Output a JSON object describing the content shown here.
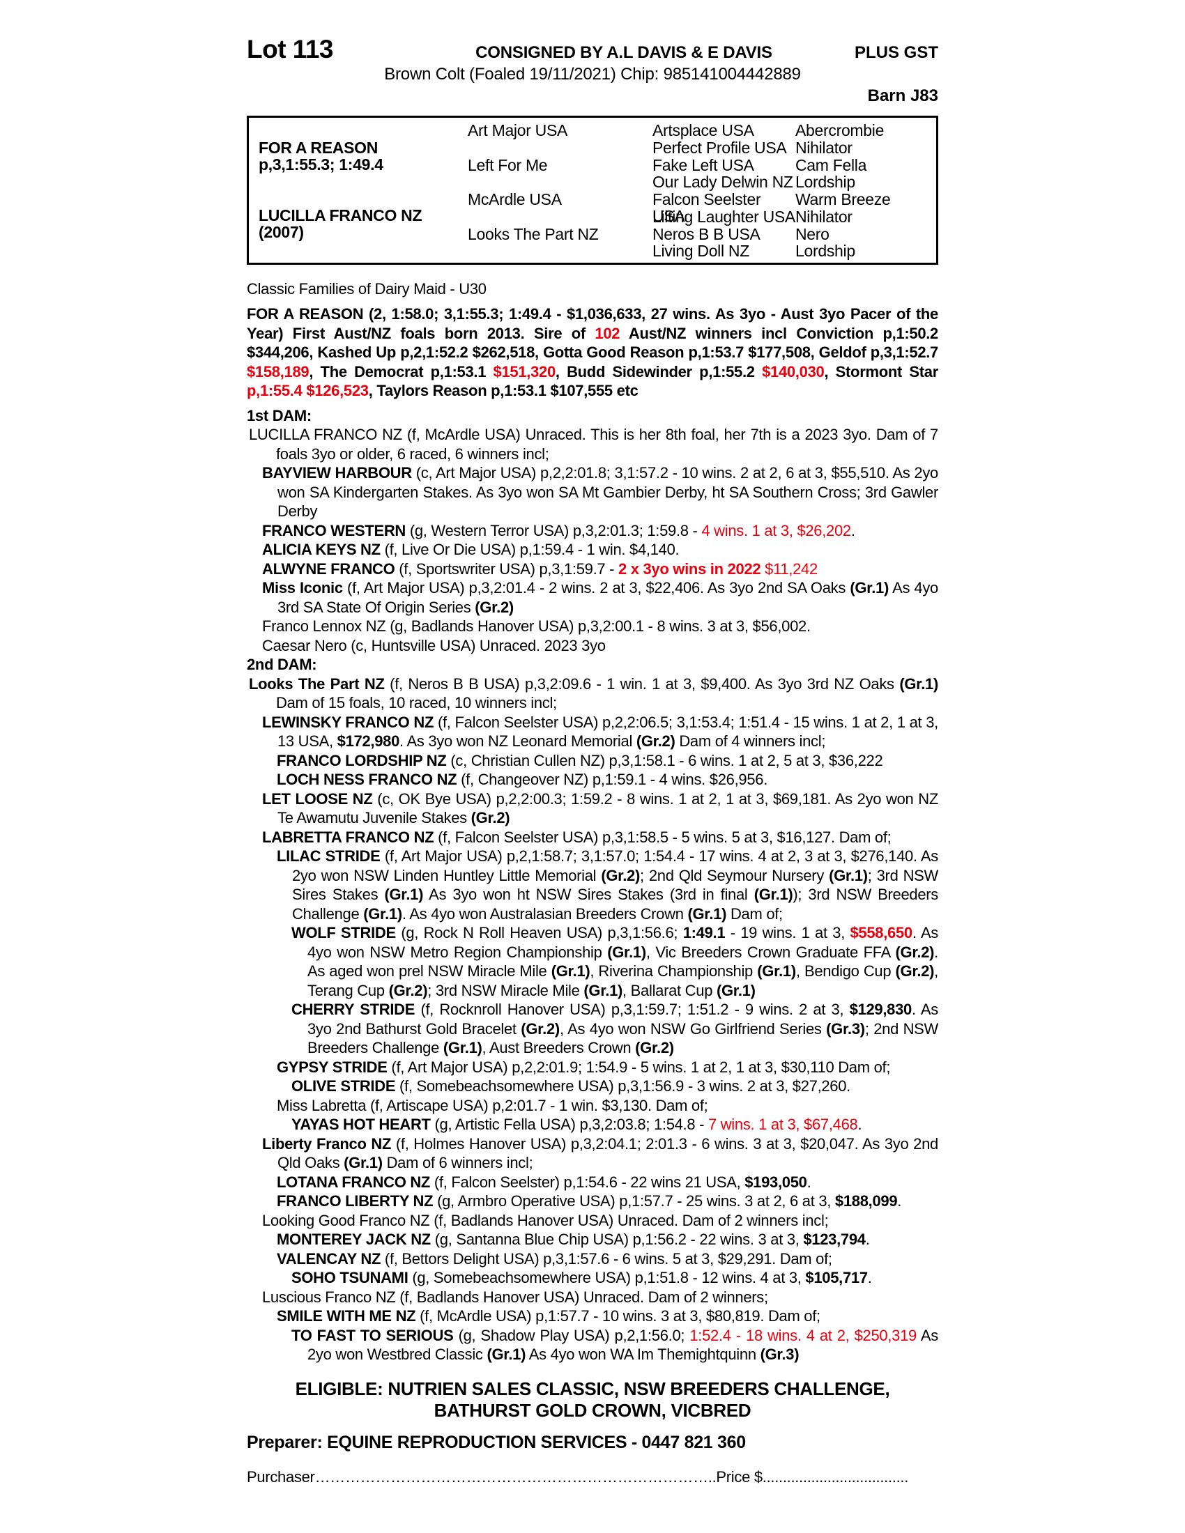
{
  "colors": {
    "accent_red": "#e8000d"
  },
  "header": {
    "lot": "Lot 113",
    "consigned": "CONSIGNED BY A.L DAVIS & E DAVIS",
    "plus_gst": "PLUS GST",
    "foaled_line": "Brown Colt (Foaled 19/11/2021) Chip: 985141004442889",
    "barn": "Barn J83"
  },
  "pedigree_table": {
    "subject": {
      "name": "FOR A REASON",
      "record": "p,3,1:55.3; 1:49.4"
    },
    "dam": {
      "name": "LUCILLA FRANCO NZ",
      "year": "(2007)"
    },
    "gen2": [
      "Art Major USA",
      "Left For Me",
      "McArdle USA",
      "Looks The Part NZ"
    ],
    "gen3": [
      "Artsplace USA",
      "Perfect Profile USA",
      "Fake Left USA",
      "Our Lady Delwin NZ",
      "Falcon Seelster USA",
      "Lilting Laughter USA",
      "Neros B B USA",
      "Living Doll NZ"
    ],
    "gen4": [
      "Abercrombie",
      "Nihilator",
      "Cam Fella",
      "Lordship",
      "Warm Breeze",
      "Nihilator",
      "Nero",
      "Lordship"
    ]
  },
  "family_line": "Classic Families of Dairy Maid - U30",
  "sire_paragraph": [
    {
      "t": "FOR A REASON (2, 1:58.0; 3,1:55.3; 1:49.4 - $1,036,633, 27 wins. As 3yo - Aust 3yo Pacer of the Year) First Aust/NZ foals born 2013. Sire of ",
      "b": 1
    },
    {
      "t": "102",
      "b": 1,
      "r": 1
    },
    {
      "t": " Aust/NZ winners incl Conviction p,1:50.2 $344,206, Kashed Up p,2,1:52.2 $262,518, Gotta Good Reason p,1:53.7 $177,508, Geldof p,3,1:52.7 ",
      "b": 1
    },
    {
      "t": "$158,189",
      "b": 1,
      "r": 1
    },
    {
      "t": ", The Democrat p,1:53.1 ",
      "b": 1
    },
    {
      "t": "$151,320",
      "b": 1,
      "r": 1
    },
    {
      "t": ", Budd Sidewinder p,1:55.2 ",
      "b": 1
    },
    {
      "t": "$140,030",
      "b": 1,
      "r": 1
    },
    {
      "t": ", Stormont Star ",
      "b": 1
    },
    {
      "t": "p,1:55.4 $126,523",
      "b": 1,
      "r": 1
    },
    {
      "t": ", Taylors Reason p,1:53.1 $107,555 etc",
      "b": 1
    }
  ],
  "sections": [
    {
      "heading": "1st DAM:",
      "entries": [
        {
          "indent": 0,
          "segments": [
            {
              "t": "LUCILLA FRANCO NZ (f, McArdle USA) Unraced. This is her 8th foal, her 7th is a 2023 3yo. Dam of 7 foals 3yo or older, 6 raced, 6 winners incl;"
            }
          ]
        },
        {
          "indent": 1,
          "segments": [
            {
              "t": "BAYVIEW HARBOUR",
              "b": 1
            },
            {
              "t": " (c, Art Major USA) p,2,2:01.8; 3,1:57.2 - 10 wins. 2 at 2, 6 at 3, $55,510. As 2yo won SA Kindergarten Stakes. As 3yo won SA Mt Gambier Derby, ht SA Southern Cross; 3rd Gawler Derby"
            }
          ]
        },
        {
          "indent": 1,
          "segments": [
            {
              "t": "FRANCO WESTERN",
              "b": 1
            },
            {
              "t": " (g, Western Terror USA) p,3,2:01.3; 1:59.8 - "
            },
            {
              "t": "4 wins. 1 at 3, $26,202",
              "r": 1
            },
            {
              "t": "."
            }
          ]
        },
        {
          "indent": 1,
          "segments": [
            {
              "t": "ALICIA KEYS NZ",
              "b": 1
            },
            {
              "t": " (f, Live Or Die USA) p,1:59.4 - 1 win. $4,140."
            }
          ]
        },
        {
          "indent": 1,
          "segments": [
            {
              "t": "ALWYNE FRANCO",
              "b": 1
            },
            {
              "t": " (f, Sportswriter USA) p,3,1:59.7 - "
            },
            {
              "t": "2 x 3yo wins in 2022",
              "b": 1,
              "r": 1
            },
            {
              "t": " ",
              "r": 1
            },
            {
              "t": "$11,242",
              "r": 1
            }
          ]
        },
        {
          "indent": 1,
          "segments": [
            {
              "t": "Miss Iconic",
              "b": 1
            },
            {
              "t": " (f, Art Major USA) p,3,2:01.4 - 2 wins. 2 at 3, $22,406. As 3yo 2nd SA Oaks "
            },
            {
              "t": "(Gr.1)",
              "b": 1
            },
            {
              "t": " As 4yo 3rd SA State Of Origin Series "
            },
            {
              "t": "(Gr.2)",
              "b": 1
            }
          ]
        },
        {
          "indent": 1,
          "segments": [
            {
              "t": "Franco Lennox NZ (g, Badlands Hanover USA) p,3,2:00.1 - 8 wins. 3 at 3, $56,002."
            }
          ]
        },
        {
          "indent": 1,
          "segments": [
            {
              "t": "Caesar Nero (c, Huntsville USA) Unraced. 2023 3yo"
            }
          ]
        }
      ]
    },
    {
      "heading": "2nd DAM:",
      "entries": [
        {
          "indent": 0,
          "segments": [
            {
              "t": "Looks The Part NZ",
              "b": 1
            },
            {
              "t": " (f, Neros B B USA) p,3,2:09.6 - 1 win. 1 at 3, $9,400. As 3yo 3rd NZ Oaks "
            },
            {
              "t": "(Gr.1)",
              "b": 1
            },
            {
              "t": " Dam of 15 foals, 10 raced, 10 winners incl;"
            }
          ]
        },
        {
          "indent": 1,
          "segments": [
            {
              "t": "LEWINSKY FRANCO NZ",
              "b": 1
            },
            {
              "t": " (f, Falcon Seelster USA) p,2,2:06.5; 3,1:53.4; 1:51.4 - 15 wins. 1 at 2, 1 at 3, 13 USA, "
            },
            {
              "t": "$172,980",
              "b": 1
            },
            {
              "t": ". As 3yo won NZ Leonard Memorial "
            },
            {
              "t": "(Gr.2)",
              "b": 1
            },
            {
              "t": " Dam of 4 winners incl;"
            }
          ]
        },
        {
          "indent": 2,
          "segments": [
            {
              "t": "FRANCO LORDSHIP NZ",
              "b": 1
            },
            {
              "t": " (c, Christian Cullen NZ) p,3,1:58.1 - 6 wins. 1 at 2, 5 at 3, $36,222"
            }
          ]
        },
        {
          "indent": 2,
          "segments": [
            {
              "t": "LOCH NESS FRANCO NZ",
              "b": 1
            },
            {
              "t": " (f, Changeover NZ) p,1:59.1 - 4 wins. $26,956."
            }
          ]
        },
        {
          "indent": 1,
          "segments": [
            {
              "t": "LET LOOSE NZ",
              "b": 1
            },
            {
              "t": " (c, OK Bye USA) p,2,2:00.3; 1:59.2 - 8 wins. 1 at 2, 1 at 3, $69,181. As 2yo won NZ Te Awamutu Juvenile Stakes "
            },
            {
              "t": "(Gr.2)",
              "b": 1
            }
          ]
        },
        {
          "indent": 1,
          "segments": [
            {
              "t": "LABRETTA FRANCO NZ",
              "b": 1
            },
            {
              "t": " (f, Falcon Seelster USA) p,3,1:58.5 - 5 wins. 5 at 3, $16,127. Dam of;"
            }
          ]
        },
        {
          "indent": 2,
          "segments": [
            {
              "t": "LILAC STRIDE",
              "b": 1
            },
            {
              "t": " (f, Art Major USA) p,2,1:58.7; 3,1:57.0; 1:54.4 - 17 wins. 4 at 2, 3 at 3, $276,140. As 2yo won NSW Linden Huntley Little Memorial "
            },
            {
              "t": "(Gr.2)",
              "b": 1
            },
            {
              "t": "; 2nd Qld Seymour Nursery "
            },
            {
              "t": "(Gr.1)",
              "b": 1
            },
            {
              "t": "; 3rd NSW Sires Stakes "
            },
            {
              "t": "(Gr.1)",
              "b": 1
            },
            {
              "t": " As 3yo won ht NSW Sires Stakes (3rd in final "
            },
            {
              "t": "(Gr.1)",
              "b": 1
            },
            {
              "t": "); 3rd NSW Breeders Challenge "
            },
            {
              "t": "(Gr.1)",
              "b": 1
            },
            {
              "t": ". As 4yo won Australasian Breeders Crown "
            },
            {
              "t": "(Gr.1)",
              "b": 1
            },
            {
              "t": " Dam of;"
            }
          ]
        },
        {
          "indent": 3,
          "segments": [
            {
              "t": "WOLF STRIDE",
              "b": 1
            },
            {
              "t": " (g, Rock N Roll Heaven USA) p,3,1:56.6; "
            },
            {
              "t": "1:49.1",
              "b": 1
            },
            {
              "t": " - 19 wins. 1 at 3, "
            },
            {
              "t": "$558,650",
              "b": 1,
              "r": 1
            },
            {
              "t": ". As 4yo won NSW Metro Region Championship "
            },
            {
              "t": "(Gr.1)",
              "b": 1
            },
            {
              "t": ", Vic Breeders Crown Graduate FFA "
            },
            {
              "t": "(Gr.2)",
              "b": 1
            },
            {
              "t": ". As aged won prel NSW Miracle Mile "
            },
            {
              "t": "(Gr.1)",
              "b": 1
            },
            {
              "t": ", Riverina Championship "
            },
            {
              "t": "(Gr.1)",
              "b": 1
            },
            {
              "t": ", Bendigo Cup "
            },
            {
              "t": "(Gr.2)",
              "b": 1
            },
            {
              "t": ", Terang Cup "
            },
            {
              "t": "(Gr.2)",
              "b": 1
            },
            {
              "t": "; 3rd NSW Miracle Mile "
            },
            {
              "t": "(Gr.1)",
              "b": 1
            },
            {
              "t": ", Ballarat Cup "
            },
            {
              "t": "(Gr.1)",
              "b": 1
            }
          ]
        },
        {
          "indent": 3,
          "segments": [
            {
              "t": "CHERRY STRIDE",
              "b": 1
            },
            {
              "t": " (f, Rocknroll Hanover USA) p,3,1:59.7; 1:51.2 - 9 wins. 2 at 3, "
            },
            {
              "t": "$129,830",
              "b": 1
            },
            {
              "t": ". As 3yo 2nd Bathurst Gold Bracelet "
            },
            {
              "t": "(Gr.2)",
              "b": 1
            },
            {
              "t": ", As 4yo won NSW Go Girlfriend Series "
            },
            {
              "t": "(Gr.3)",
              "b": 1
            },
            {
              "t": "; 2nd NSW Breeders Challenge "
            },
            {
              "t": "(Gr.1)",
              "b": 1
            },
            {
              "t": ", Aust Breeders Crown "
            },
            {
              "t": "(Gr.2)",
              "b": 1
            }
          ]
        },
        {
          "indent": 2,
          "segments": [
            {
              "t": "GYPSY STRIDE",
              "b": 1
            },
            {
              "t": " (f, Art Major USA) p,2,2:01.9; 1:54.9 - 5 wins. 1 at 2, 1 at 3, $30,110 Dam of;"
            }
          ]
        },
        {
          "indent": 3,
          "segments": [
            {
              "t": "OLIVE STRIDE",
              "b": 1
            },
            {
              "t": " (f, Somebeachsomewhere USA) p,3,1:56.9 - 3 wins. 2 at 3, $27,260."
            }
          ]
        },
        {
          "indent": 2,
          "segments": [
            {
              "t": "Miss Labretta (f, Artiscape USA) p,2:01.7 - 1 win. $3,130. Dam of;"
            }
          ]
        },
        {
          "indent": 3,
          "segments": [
            {
              "t": "YAYAS HOT HEART",
              "b": 1
            },
            {
              "t": " (g, Artistic Fella USA) p,3,2:03.8; 1:54.8 - "
            },
            {
              "t": "7 wins. 1 at 3, $67,468",
              "r": 1
            },
            {
              "t": "."
            }
          ]
        },
        {
          "indent": 1,
          "segments": [
            {
              "t": "Liberty Franco NZ",
              "b": 1
            },
            {
              "t": " (f, Holmes Hanover USA) p,3,2:04.1; 2:01.3 - 6 wins. 3 at 3, $20,047. As 3yo 2nd Qld Oaks "
            },
            {
              "t": "(Gr.1)",
              "b": 1
            },
            {
              "t": " Dam of 6 winners incl;"
            }
          ]
        },
        {
          "indent": 2,
          "segments": [
            {
              "t": "LOTANA FRANCO NZ",
              "b": 1
            },
            {
              "t": " (f, Falcon Seelster) p,1:54.6 - 22 wins 21 USA, "
            },
            {
              "t": "$193,050",
              "b": 1
            },
            {
              "t": "."
            }
          ]
        },
        {
          "indent": 2,
          "segments": [
            {
              "t": "FRANCO LIBERTY NZ",
              "b": 1
            },
            {
              "t": " (g, Armbro Operative USA) p,1:57.7 - 25 wins. 3 at 2, 6 at 3, "
            },
            {
              "t": "$188,099",
              "b": 1
            },
            {
              "t": "."
            }
          ]
        },
        {
          "indent": 1,
          "segments": [
            {
              "t": "Looking Good Franco NZ (f, Badlands Hanover USA) Unraced. Dam of 2 winners incl;"
            }
          ]
        },
        {
          "indent": 2,
          "segments": [
            {
              "t": "MONTEREY JACK NZ",
              "b": 1
            },
            {
              "t": " (g, Santanna Blue Chip USA) p,1:56.2 - 22 wins. 3 at 3, "
            },
            {
              "t": "$123,794",
              "b": 1
            },
            {
              "t": "."
            }
          ]
        },
        {
          "indent": 2,
          "segments": [
            {
              "t": "VALENCAY NZ",
              "b": 1
            },
            {
              "t": " (f, Bettors Delight USA) p,3,1:57.6 - 6 wins. 5 at 3, $29,291. Dam of;"
            }
          ]
        },
        {
          "indent": 3,
          "segments": [
            {
              "t": "SOHO TSUNAMI",
              "b": 1
            },
            {
              "t": " (g, Somebeachsomewhere USA) p,1:51.8 - 12 wins. 4 at 3, "
            },
            {
              "t": "$105,717",
              "b": 1
            },
            {
              "t": "."
            }
          ]
        },
        {
          "indent": 1,
          "segments": [
            {
              "t": "Luscious Franco NZ (f, Badlands Hanover USA) Unraced. Dam of 2 winners;"
            }
          ]
        },
        {
          "indent": 2,
          "segments": [
            {
              "t": "SMILE WITH ME NZ",
              "b": 1
            },
            {
              "t": " (f, McArdle USA) p,1:57.7 - 10 wins. 3 at 3, $80,819. Dam of;"
            }
          ]
        },
        {
          "indent": 3,
          "segments": [
            {
              "t": "TO FAST TO SERIOUS",
              "b": 1
            },
            {
              "t": " (g, Shadow Play USA) p,2,1:56.0; "
            },
            {
              "t": "1:52.4 - 18 wins. 4 at 2, $250,319",
              "r": 1
            },
            {
              "t": " As 2yo won Westbred Classic "
            },
            {
              "t": "(Gr.1)",
              "b": 1
            },
            {
              "t": " As 4yo won WA Im Themightquinn "
            },
            {
              "t": "(Gr.3)",
              "b": 1
            }
          ]
        }
      ]
    }
  ],
  "footer": {
    "eligible": "ELIGIBLE: NUTRIEN SALES CLASSIC, NSW BREEDERS CHALLENGE, BATHURST GOLD CROWN, VICBRED",
    "preparer": "Preparer: EQUINE REPRODUCTION SERVICES - 0447 821 360",
    "purchaser": "Purchaser……………………………………………………………………..Price $...................................."
  }
}
